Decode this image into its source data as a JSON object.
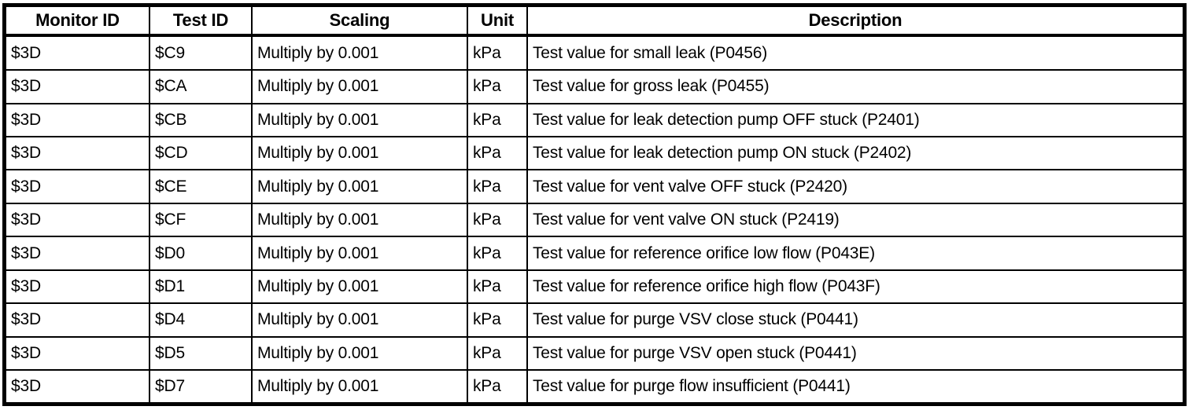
{
  "colors": {
    "border": "#000000",
    "text": "#000000",
    "background": "#ffffff"
  },
  "table": {
    "columns": [
      "Monitor ID",
      "Test ID",
      "Scaling",
      "Unit",
      "Description"
    ],
    "rows": [
      [
        "$3D",
        "$C9",
        "Multiply by 0.001",
        "kPa",
        "Test value for small leak (P0456)"
      ],
      [
        "$3D",
        "$CA",
        "Multiply by 0.001",
        "kPa",
        "Test value for gross leak (P0455)"
      ],
      [
        "$3D",
        "$CB",
        "Multiply by 0.001",
        "kPa",
        "Test value for leak detection pump OFF stuck (P2401)"
      ],
      [
        "$3D",
        "$CD",
        "Multiply by 0.001",
        "kPa",
        "Test value for leak detection pump ON stuck (P2402)"
      ],
      [
        "$3D",
        "$CE",
        "Multiply by 0.001",
        "kPa",
        "Test value for vent valve OFF stuck (P2420)"
      ],
      [
        "$3D",
        "$CF",
        "Multiply by 0.001",
        "kPa",
        "Test value for vent valve ON stuck (P2419)"
      ],
      [
        "$3D",
        "$D0",
        "Multiply by 0.001",
        "kPa",
        "Test value for reference orifice low flow (P043E)"
      ],
      [
        "$3D",
        "$D1",
        "Multiply by 0.001",
        "kPa",
        "Test value for reference orifice high flow (P043F)"
      ],
      [
        "$3D",
        "$D4",
        "Multiply by 0.001",
        "kPa",
        "Test value for purge VSV close stuck (P0441)"
      ],
      [
        "$3D",
        "$D5",
        "Multiply by 0.001",
        "kPa",
        "Test value for purge VSV open stuck (P0441)"
      ],
      [
        "$3D",
        "$D7",
        "Multiply by 0.001",
        "kPa",
        "Test value for purge flow insufficient (P0441)"
      ]
    ]
  }
}
